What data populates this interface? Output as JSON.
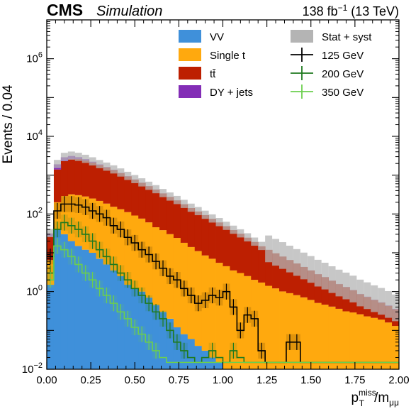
{
  "header": {
    "experiment": "CMS",
    "tag": "Simulation",
    "lumi_value": "138 fb",
    "lumi_exp": "−1",
    "energy": " (13 TeV)"
  },
  "chart_data": {
    "type": "bar",
    "stacked": true,
    "xlabel_main": "p",
    "xlabel_sup": "miss",
    "xlabel_sub": "T",
    "xlabel_den": "/m",
    "xlabel_den_sub": "μμ",
    "ylabel": "Events / 0.04",
    "xlim": [
      0,
      2
    ],
    "ylim": [
      0.01,
      10000000
    ],
    "yscale": "log",
    "grid": false,
    "legend_position": "top-right",
    "x_ticks": [
      "0.00",
      "0.25",
      "0.50",
      "0.75",
      "1.00",
      "1.25",
      "1.50",
      "1.75",
      "2.00"
    ],
    "y_ticks": [
      {
        "base": "10",
        "exp": "−2",
        "value": 0.01
      },
      {
        "base": "10",
        "exp": "0",
        "value": 1
      },
      {
        "base": "10",
        "exp": "2",
        "value": 100
      },
      {
        "base": "10",
        "exp": "4",
        "value": 10000
      },
      {
        "base": "10",
        "exp": "6",
        "value": 1000000
      }
    ],
    "bin_edges_start": 0.0,
    "bin_width": 0.04,
    "stack_series": [
      {
        "name": "VV",
        "color": "#3f90da",
        "values": [
          1.5,
          40,
          30,
          20,
          15,
          12,
          10,
          7,
          5,
          3.5,
          2.5,
          1.5,
          1.2,
          1.0,
          0.7,
          0.45,
          0.3,
          0.2,
          0.12,
          0.08,
          0.06,
          0.04,
          0.03,
          0.02,
          0.015,
          0.01,
          0.01,
          0.01,
          0.01,
          0.01,
          0.01,
          0.01,
          0.01,
          0.01,
          0.01,
          0.01,
          0.01,
          0.01,
          0.01,
          0.01,
          0.01,
          0.01,
          0.01,
          0.01,
          0.01,
          0.01,
          0.01,
          0.01,
          0.01,
          0.01
        ]
      },
      {
        "name": "Single t",
        "color": "#ffa90e",
        "values": [
          5,
          160,
          260,
          300,
          290,
          270,
          240,
          210,
          180,
          150,
          130,
          110,
          90,
          75,
          60,
          45,
          38,
          30,
          24,
          18,
          14,
          11,
          8.5,
          7,
          5.5,
          4.5,
          3.5,
          3,
          2.5,
          2,
          1.7,
          1.4,
          1.2,
          1.0,
          0.9,
          0.8,
          0.7,
          0.6,
          0.5,
          0.45,
          0.4,
          0.35,
          0.3,
          0.28,
          0.25,
          0.22,
          0.2,
          0.18,
          0.15,
          0.12
        ]
      },
      {
        "name": "tt̄",
        "color": "#bd1f01",
        "values": [
          20,
          1200,
          2000,
          2300,
          2300,
          2100,
          1850,
          1600,
          1400,
          1200,
          1000,
          820,
          680,
          560,
          460,
          380,
          300,
          245,
          200,
          160,
          128,
          105,
          85,
          68,
          55,
          44,
          35,
          28,
          22,
          17,
          13,
          10.5,
          8.5,
          7,
          5.6,
          4.5,
          3.6,
          2.9,
          2.3,
          1.9,
          1.5,
          1.2,
          1.0,
          0.8,
          0.6,
          0.5,
          0.4,
          0.33,
          0.27,
          0.22
        ]
      },
      {
        "name": "DY + jets",
        "color": "#832db6",
        "values": [
          5,
          500,
          600,
          500,
          300,
          200,
          120,
          70,
          40,
          25,
          15,
          9,
          5,
          3,
          2,
          1.2,
          0.8,
          0.5,
          0.3,
          0.2,
          0.12,
          0.08,
          0.05,
          0.03,
          0.02,
          0.01,
          0.01,
          0.01,
          0.01,
          0.01,
          0.01,
          0.01,
          0.01,
          0.01,
          0.01,
          0.01,
          0.01,
          0.01,
          0.01,
          0.01,
          0.01,
          0.01,
          0.01,
          0.01,
          0.01,
          0.01,
          0.01,
          0.01,
          0.01,
          0.01
        ]
      }
    ],
    "uncertainty": {
      "name": "Stat + syst",
      "color": "#b4b4b4",
      "rel_low": 0.8,
      "rel_high": 1.3
    },
    "signal_series": [
      {
        "name": "125 GeV",
        "color": "#000000",
        "values": [
          8,
          120,
          180,
          180,
          170,
          150,
          120,
          100,
          80,
          50,
          40,
          25,
          18,
          12,
          9,
          6,
          4,
          2.5,
          2,
          1.2,
          0.8,
          0.5,
          0.6,
          0.8,
          0.7,
          1.0,
          0.4,
          0.1,
          0.25,
          0.2,
          0.03,
          0.015,
          0.015,
          0.015,
          0.05,
          0.05,
          0.015,
          0.015,
          0.015,
          0.015,
          0.015,
          0.015,
          0.015,
          0.015,
          0.015,
          0.015,
          0.015,
          0.015,
          0.015,
          0.015
        ]
      },
      {
        "name": "200 GeV",
        "color": "#1f7a1f",
        "values": [
          3,
          40,
          60,
          50,
          40,
          30,
          20,
          12,
          8,
          5,
          3,
          2,
          1.2,
          0.8,
          0.5,
          0.3,
          0.2,
          0.1,
          0.05,
          0.03,
          0.02,
          0.015,
          0.02,
          0.03,
          0.02,
          0.015,
          0.03,
          0.02,
          0.015,
          0.015,
          0.015,
          0.015,
          0.015,
          0.015,
          0.015,
          0.015,
          0.015,
          0.015,
          0.015,
          0.015,
          0.015,
          0.015,
          0.015,
          0.015,
          0.015,
          0.015,
          0.015,
          0.015,
          0.015,
          0.015
        ]
      },
      {
        "name": "350 GeV",
        "color": "#6ccf4f",
        "values": [
          2,
          15,
          12,
          8,
          5,
          3,
          2,
          1.2,
          0.8,
          0.5,
          0.3,
          0.2,
          0.12,
          0.08,
          0.05,
          0.03,
          0.02,
          0.015,
          0.015,
          0.015,
          0.015,
          0.015,
          0.015,
          0.015,
          0.015,
          0.015,
          0.015,
          0.015,
          0.015,
          0.015,
          0.015,
          0.015,
          0.015,
          0.015,
          0.015,
          0.015,
          0.015,
          0.015,
          0.015,
          0.015,
          0.015,
          0.015,
          0.015,
          0.015,
          0.015,
          0.015,
          0.015,
          0.015,
          0.015,
          0.015
        ]
      }
    ]
  }
}
